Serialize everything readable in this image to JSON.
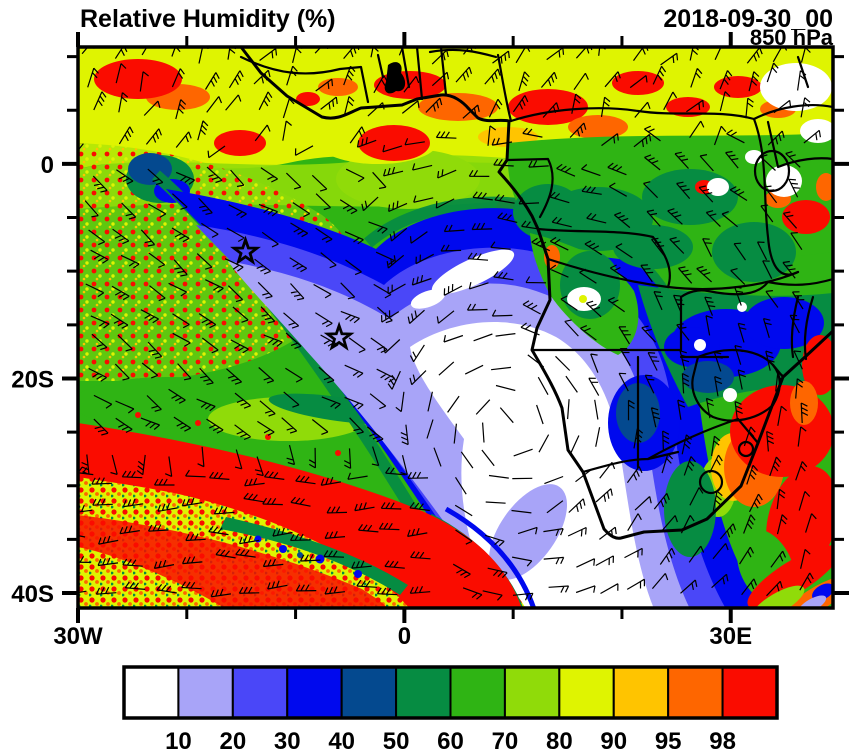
{
  "header": {
    "title": "Relative Humidity (%)",
    "datetime": "2018-09-30_00",
    "level": "850 hPa"
  },
  "chart_data": {
    "type": "heatmap",
    "title": "Relative Humidity (%)",
    "valid_time": "2018-09-30_00",
    "pressure_level": "850 hPa",
    "variable": "relative humidity",
    "units": "%",
    "region": "Southern Africa and South Atlantic",
    "extent": {
      "lon_min": -30,
      "lon_max": 39.4,
      "lat_min": -41.4,
      "lat_max": 10.9
    },
    "x_axis": {
      "major_ticks": [
        {
          "lon": -30,
          "label": "30W"
        },
        {
          "lon": 0,
          "label": "0"
        },
        {
          "lon": 30,
          "label": "30E"
        }
      ],
      "minor_tick_lons": [
        -20,
        -10,
        10,
        20
      ]
    },
    "y_axis": {
      "major_ticks": [
        {
          "lat": 0,
          "label": "0"
        },
        {
          "lat": -20,
          "label": "20S"
        },
        {
          "lat": -40,
          "label": "40S"
        }
      ],
      "minor_tick_lats": [
        10,
        5,
        -5,
        -10,
        -15,
        -25,
        -30,
        -35
      ]
    },
    "colorbar": {
      "values": [
        10,
        20,
        30,
        40,
        50,
        60,
        70,
        80,
        90,
        95,
        98
      ],
      "colors": [
        "#FFFFFF",
        "#A8A4F8",
        "#4A47F8",
        "#0009EE",
        "#04498F",
        "#068C42",
        "#2FB414",
        "#90DB09",
        "#DFF401",
        "#FFC400",
        "#FE6600",
        "#FA0C00"
      ]
    },
    "markers": [
      {
        "type": "star",
        "lon": -14.6,
        "lat": -8.2
      },
      {
        "type": "star",
        "lon": -6.0,
        "lat": -16.2
      }
    ],
    "overlays": [
      "wind barbs",
      "coastlines",
      "country borders"
    ],
    "field_description": "Large dry tongue (RH<10%) over the SE Atlantic extending into Namibia/South Africa; moist ITCZ band along the Gulf of Guinea; zonal storm-track moisture band near 40S"
  }
}
